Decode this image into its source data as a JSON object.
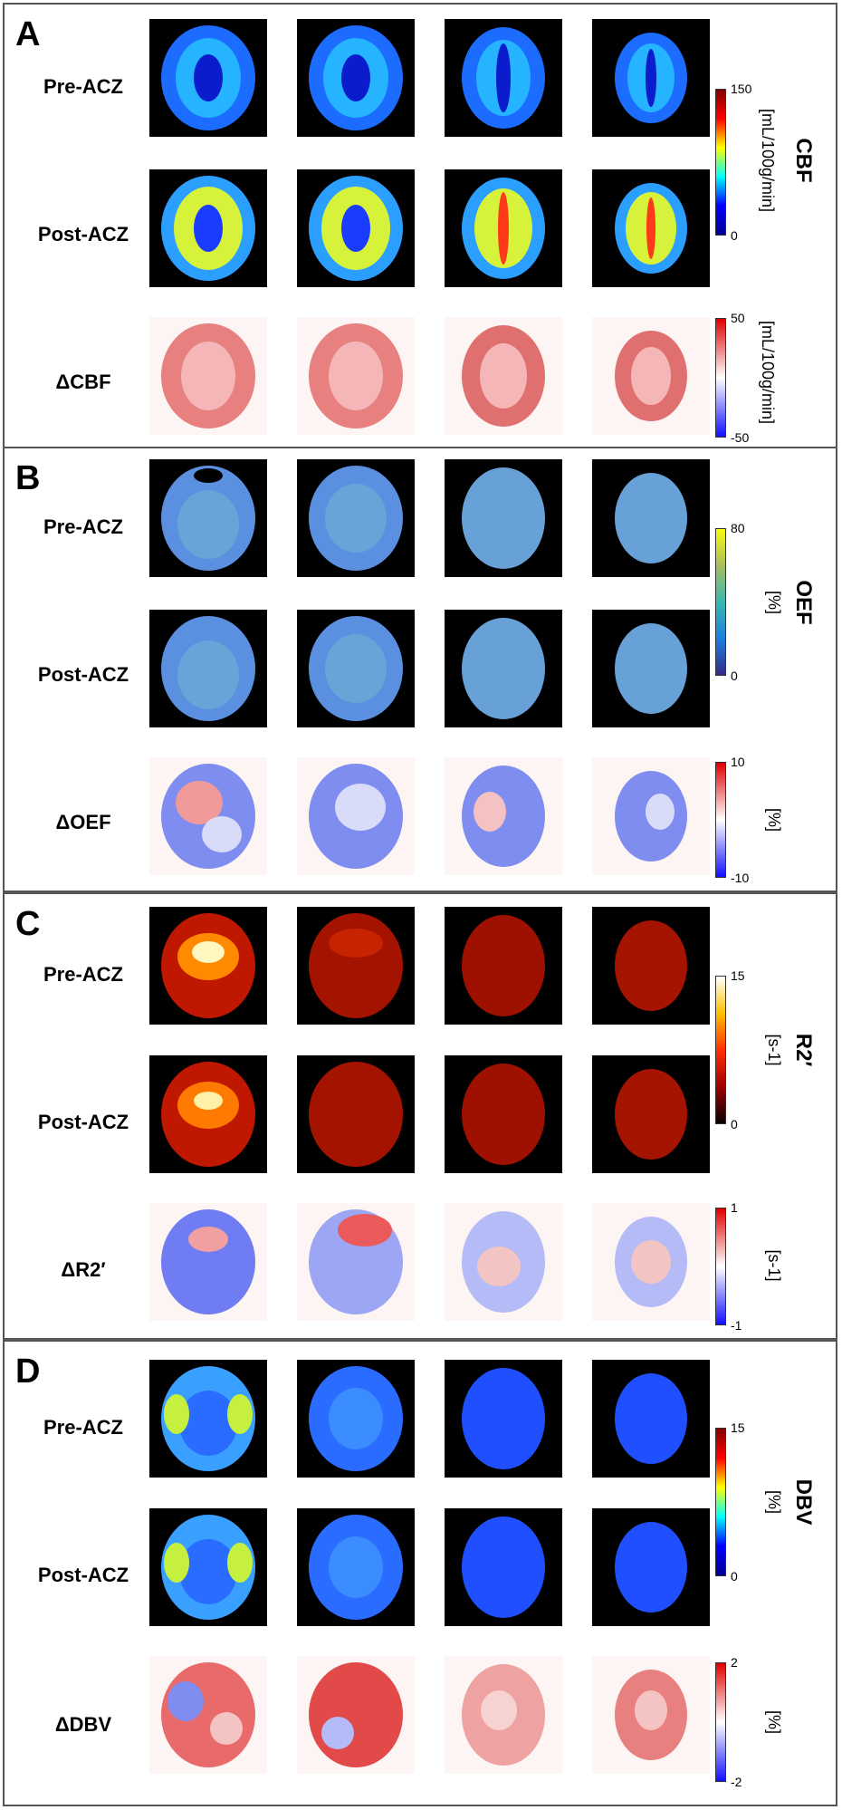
{
  "panels": [
    {
      "letter": "A",
      "rows": [
        "Pre-ACZ",
        "Post-ACZ",
        "ΔCBF"
      ],
      "measure": "CBF",
      "unit": "[mL/100g/min]",
      "scale_main": {
        "max": "150",
        "min": "0",
        "colormap": "jet"
      },
      "scale_delta": {
        "max": "50",
        "min": "-50",
        "colormap": "blue-white-red",
        "unit": "[mL/100g/min]"
      }
    },
    {
      "letter": "B",
      "rows": [
        "Pre-ACZ",
        "Post-ACZ",
        "ΔOEF"
      ],
      "measure": "OEF",
      "unit": "[%]",
      "scale_main": {
        "max": "80",
        "min": "0",
        "colormap": "parula"
      },
      "scale_delta": {
        "max": "10",
        "min": "-10",
        "colormap": "blue-white-red",
        "unit": "[%]"
      }
    },
    {
      "letter": "C",
      "rows": [
        "Pre-ACZ",
        "Post-ACZ",
        "ΔR2′"
      ],
      "measure": "R2′",
      "unit": "[s-1]",
      "scale_main": {
        "max": "15",
        "min": "0",
        "colormap": "hot"
      },
      "scale_delta": {
        "max": "1",
        "min": "-1",
        "colormap": "blue-white-red",
        "unit": "[s-1]"
      }
    },
    {
      "letter": "D",
      "rows": [
        "Pre-ACZ",
        "Post-ACZ",
        "ΔDBV"
      ],
      "measure": "DBV",
      "unit": "[%]",
      "scale_main": {
        "max": "15",
        "min": "0",
        "colormap": "jet"
      },
      "scale_delta": {
        "max": "2",
        "min": "-2",
        "colormap": "blue-white-red",
        "unit": "[%]"
      }
    }
  ],
  "colors": {
    "frame": "#555555",
    "jet": [
      "#00008f",
      "#0000ff",
      "#00ffff",
      "#ffff00",
      "#ff0000",
      "#800000"
    ],
    "parula": [
      "#352a87",
      "#1b7fe0",
      "#39b9b0",
      "#a8be5c",
      "#f9fb0e"
    ],
    "hot": [
      "#0a0000",
      "#a00000",
      "#ff3000",
      "#ffc000",
      "#ffffff"
    ],
    "diverging": [
      "#1010ff",
      "#ffffff",
      "#e00000"
    ]
  }
}
